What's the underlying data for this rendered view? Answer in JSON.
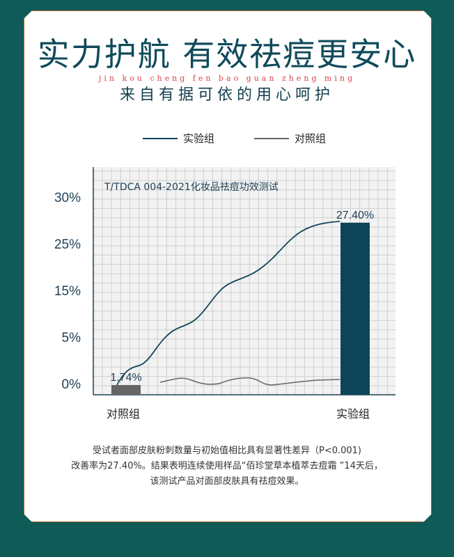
{
  "header": {
    "title": "实力护航 有效祛痘更安心",
    "pinyin_overlay": "jin kou cheng fen bao guan zheng ming",
    "subtitle": "来自有据可依的用心呵护"
  },
  "colors": {
    "background": "#0f5b57",
    "experiment": "#0e4457",
    "control": "#666666",
    "border": "#b5652a"
  },
  "chart_data": {
    "type": "bar",
    "title": "T/TDCA 004-2021化妆品祛痘功效测试",
    "categories": [
      "对照组",
      "实验组"
    ],
    "values": [
      1.74,
      27.4
    ],
    "data_labels": [
      "1.74%",
      "27.40%"
    ],
    "series": [
      {
        "name": "实验组"
      },
      {
        "name": "对照组"
      }
    ],
    "y_ticks": [
      "0%",
      "5%",
      "15%",
      "25%",
      "30%"
    ],
    "y_tick_values": [
      0,
      5,
      15,
      25,
      30
    ],
    "grid": true,
    "legend": "top"
  },
  "footnote": {
    "line1": "受试者面部皮肤粉刺数量与初始值相比具有显著性差异（P<0.001)",
    "line2": "改善率为27.40%。结果表明连续使用样品“佰珍堂草本植萃去痘霜 ”14天后，",
    "line3": "该测试产品对面部皮肤具有祛痘效果。"
  }
}
